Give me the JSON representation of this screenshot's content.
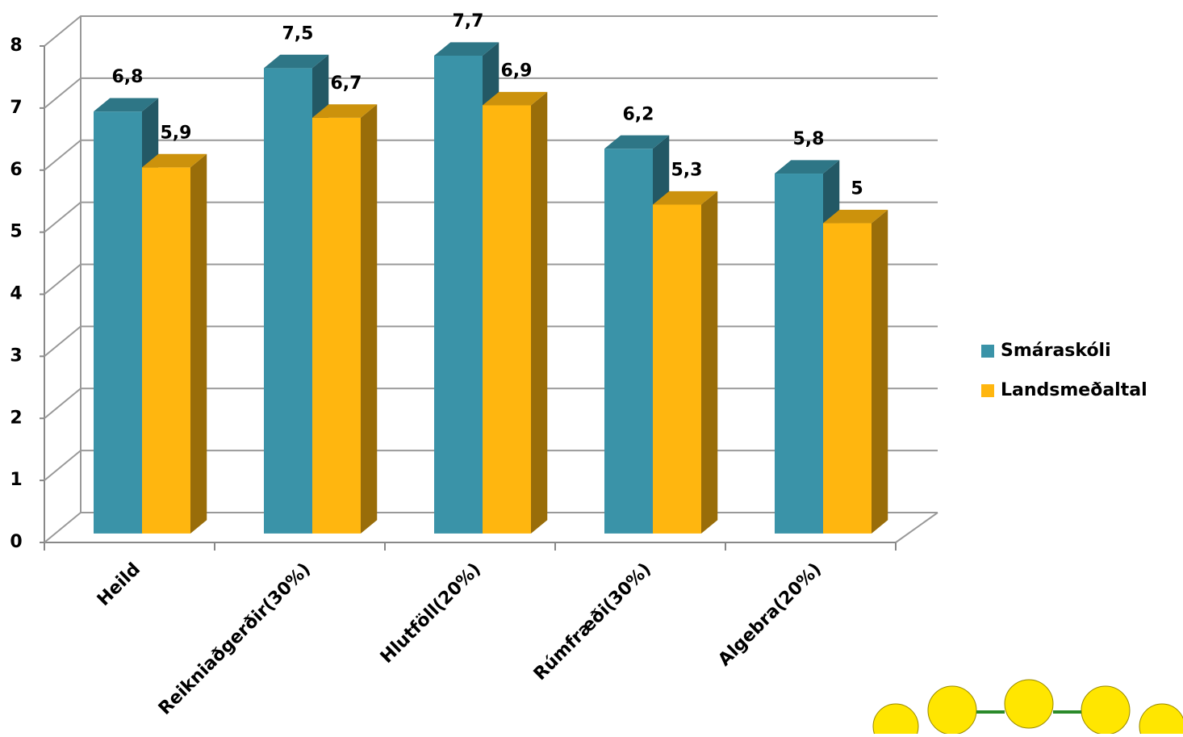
{
  "chart_data": {
    "type": "bar3d",
    "categories": [
      "Heild",
      "Reikniaðgerðir(30%)",
      "Hlutföll(20%)",
      "Rúmfræði(30%)",
      "Algebra(20%)"
    ],
    "series": [
      {
        "name": "Smáraskóli",
        "color": "#3a93a8",
        "values": [
          6.8,
          7.5,
          7.7,
          6.2,
          5.8
        ],
        "value_labels": [
          "6,8",
          "7,5",
          "7,7",
          "6,2",
          "5,8"
        ]
      },
      {
        "name": "Landsmeðaltal",
        "color": "#ffb60f",
        "values": [
          5.9,
          6.7,
          6.9,
          5.3,
          5
        ],
        "value_labels": [
          "5,9",
          "6,7",
          "6,9",
          "5,3",
          "5"
        ]
      }
    ],
    "ylim": [
      0,
      8
    ],
    "yticks": [
      0,
      1,
      2,
      3,
      4,
      5,
      6,
      7,
      8
    ],
    "grid": true,
    "legend": "right"
  }
}
